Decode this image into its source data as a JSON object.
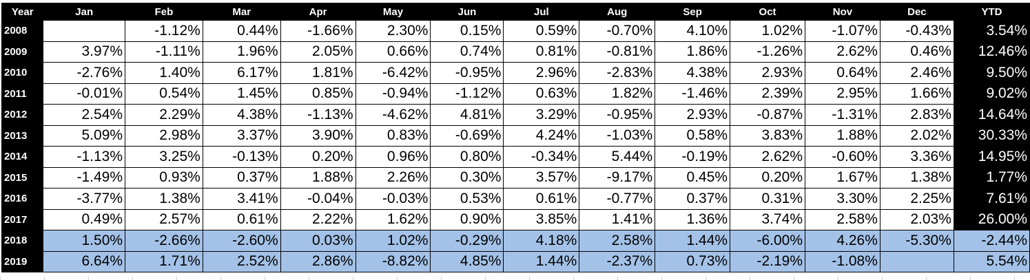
{
  "headers": [
    "Year",
    "Jan",
    "Feb",
    "Mar",
    "Apr",
    "May",
    "Jun",
    "Jul",
    "Aug",
    "Sep",
    "Oct",
    "Nov",
    "Dec",
    "YTD"
  ],
  "rows": [
    {
      "year": "2008",
      "months": [
        "",
        "-1.12%",
        "0.44%",
        "-1.66%",
        "2.30%",
        "0.15%",
        "0.59%",
        "-0.70%",
        "4.10%",
        "1.02%",
        "-1.07%",
        "-0.43%"
      ],
      "ytd": "3.54%",
      "highlight": false
    },
    {
      "year": "2009",
      "months": [
        "3.97%",
        "-1.11%",
        "1.96%",
        "2.05%",
        "0.66%",
        "0.74%",
        "0.81%",
        "-0.81%",
        "1.86%",
        "-1.26%",
        "2.62%",
        "0.46%"
      ],
      "ytd": "12.46%",
      "highlight": false
    },
    {
      "year": "2010",
      "months": [
        "-2.76%",
        "1.40%",
        "6.17%",
        "1.81%",
        "-6.42%",
        "-0.95%",
        "2.96%",
        "-2.83%",
        "4.38%",
        "2.93%",
        "0.64%",
        "2.46%"
      ],
      "ytd": "9.50%",
      "highlight": false
    },
    {
      "year": "2011",
      "months": [
        "-0.01%",
        "0.54%",
        "1.45%",
        "0.85%",
        "-0.94%",
        "-1.12%",
        "0.63%",
        "1.82%",
        "-1.46%",
        "2.39%",
        "2.95%",
        "1.66%"
      ],
      "ytd": "9.02%",
      "highlight": false
    },
    {
      "year": "2012",
      "months": [
        "2.54%",
        "2.29%",
        "4.38%",
        "-1.13%",
        "-4.62%",
        "4.81%",
        "3.29%",
        "-0.95%",
        "2.93%",
        "-0.87%",
        "-1.31%",
        "2.83%"
      ],
      "ytd": "14.64%",
      "highlight": false
    },
    {
      "year": "2013",
      "months": [
        "5.09%",
        "2.98%",
        "3.37%",
        "3.90%",
        "0.83%",
        "-0.69%",
        "4.24%",
        "-1.03%",
        "0.58%",
        "3.83%",
        "1.88%",
        "2.02%"
      ],
      "ytd": "30.33%",
      "highlight": false
    },
    {
      "year": "2014",
      "months": [
        "-1.13%",
        "3.25%",
        "-0.13%",
        "0.20%",
        "0.96%",
        "0.80%",
        "-0.34%",
        "5.44%",
        "-0.19%",
        "2.62%",
        "-0.60%",
        "3.36%"
      ],
      "ytd": "14.95%",
      "highlight": false
    },
    {
      "year": "2015",
      "months": [
        "-1.49%",
        "0.93%",
        "0.37%",
        "1.88%",
        "2.26%",
        "0.30%",
        "3.57%",
        "-9.17%",
        "0.45%",
        "0.20%",
        "1.67%",
        "1.38%"
      ],
      "ytd": "1.77%",
      "highlight": false
    },
    {
      "year": "2016",
      "months": [
        "-3.77%",
        "1.38%",
        "3.41%",
        "-0.04%",
        "-0.03%",
        "0.53%",
        "0.61%",
        "-0.77%",
        "0.37%",
        "0.31%",
        "3.30%",
        "2.25%"
      ],
      "ytd": "7.61%",
      "highlight": false
    },
    {
      "year": "2017",
      "months": [
        "0.49%",
        "2.57%",
        "0.61%",
        "2.22%",
        "1.62%",
        "0.90%",
        "3.85%",
        "1.41%",
        "1.36%",
        "3.74%",
        "2.58%",
        "2.03%"
      ],
      "ytd": "26.00%",
      "highlight": false
    },
    {
      "year": "2018",
      "months": [
        "1.50%",
        "-2.66%",
        "-2.60%",
        "0.03%",
        "1.02%",
        "-0.29%",
        "4.18%",
        "2.58%",
        "1.44%",
        "-6.00%",
        "4.26%",
        "-5.30%"
      ],
      "ytd": "-2.44%",
      "highlight": true
    },
    {
      "year": "2019",
      "months": [
        "6.64%",
        "1.71%",
        "2.52%",
        "2.86%",
        "-8.82%",
        "4.85%",
        "1.44%",
        "-2.37%",
        "0.73%",
        "-2.19%",
        "-1.08%",
        ""
      ],
      "ytd": "5.54%",
      "highlight": true
    }
  ],
  "colors": {
    "header_bg": "#000000",
    "header_text": "#ffffff",
    "highlight_row": "#a4c2e8"
  }
}
